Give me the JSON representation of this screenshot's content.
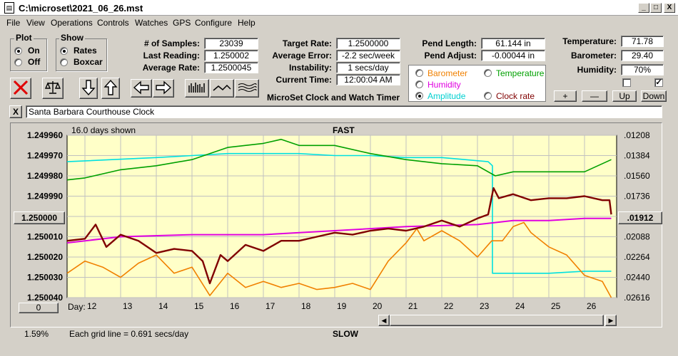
{
  "window": {
    "title": "C:\\microset\\2021_06_26.mst",
    "min": "_",
    "max": "□",
    "close": "X"
  },
  "menu": [
    "File",
    "View",
    "Operations",
    "Controls",
    "Watches",
    "GPS",
    "Configure",
    "Help"
  ],
  "plot_group": {
    "title": "Plot",
    "options": [
      "On",
      "Off"
    ],
    "selected": "On"
  },
  "show_group": {
    "title": "Show",
    "options": [
      "Rates",
      "Boxcar"
    ],
    "selected": "Rates"
  },
  "stats": {
    "samples_label": "# of Samples:",
    "samples": "23039",
    "last_label": "Last Reading:",
    "last": "1.250002",
    "avg_label": "Average Rate:",
    "avg": "1.2500045"
  },
  "targets": {
    "target_label": "Target Rate:",
    "target": "1.2500000",
    "err_label": "Average Error:",
    "err": "-2.2 sec/week",
    "inst_label": "Instability:",
    "inst": "1 secs/day",
    "time_label": "Current Time:",
    "time": "12:00:04 AM"
  },
  "pendulum": {
    "length_label": "Pend Length:",
    "length": "61.144 in",
    "adjust_label": "Pend Adjust:",
    "adjust": "-0.00044 in"
  },
  "environment": {
    "temp_label": "Temperature:",
    "temp": "71.78",
    "baro_label": "Barometer:",
    "baro": "29.40",
    "hum_label": "Humidity:",
    "hum": "70%",
    "check1": "",
    "check2": "✓"
  },
  "env_buttons": [
    "+",
    "—",
    "Up",
    "Down"
  ],
  "legend": {
    "items": [
      {
        "label": "Barometer",
        "color": "#f08000",
        "selected": false
      },
      {
        "label": "Temperature",
        "color": "#00a000",
        "selected": false
      },
      {
        "label": "Humidity",
        "color": "#e000e0",
        "selected": false
      },
      {
        "label": "Amplitude",
        "color": "#00d0d0",
        "selected": true
      },
      {
        "label": "Clock rate",
        "color": "#800000",
        "selected": false
      }
    ]
  },
  "app_caption": "MicroSet Clock and Watch Timer",
  "clock_name": "Santa Barbara Courthouse Clock",
  "close_x": "X",
  "chart_header": {
    "days_shown": "16.0 days shown",
    "top": "FAST",
    "bottom": "SLOW",
    "day_label": "Day:",
    "gridline_note": "Each grid line = 0.691 secs/day",
    "pct": "1.59%",
    "left_button": "0"
  },
  "colors": {
    "plot_bg": "#ffffc8",
    "grid": "#c0c0c0",
    "amplitude": "#00e0e0",
    "temperature": "#00a000",
    "humidity": "#e000e0",
    "barometer": "#f08000",
    "clock_rate": "#800000"
  },
  "chart_data": {
    "type": "line",
    "x_ticks": [
      12,
      13,
      14,
      15,
      16,
      17,
      18,
      19,
      20,
      21,
      22,
      23,
      24,
      25,
      26
    ],
    "xlim": [
      11.5,
      26.9
    ],
    "y_left_ticks": [
      "1.249960",
      "1.249970",
      "1.249980",
      "1.249990",
      "1.250000",
      "1.250010",
      "1.250020",
      "1.250030",
      "1.250040"
    ],
    "y_left_lim": [
      1.24996,
      1.25004
    ],
    "y_left_button": "1.250000",
    "y_right_ticks": [
      ".01208",
      ".01384",
      ".01560",
      ".01736",
      ".01912",
      ".02088",
      ".02264",
      ".02440",
      ".02616"
    ],
    "y_right_button": ".01912",
    "series": [
      {
        "name": "Amplitude",
        "color": "#00e0e0",
        "x": [
          11.5,
          14,
          15,
          16,
          17,
          18,
          19,
          20,
          21,
          22,
          23.3,
          23.42,
          23.42,
          24,
          25,
          26,
          26.75
        ],
        "y": [
          1.249973,
          1.249971,
          1.24997,
          1.249969,
          1.249969,
          1.249969,
          1.24997,
          1.24997,
          1.249971,
          1.249971,
          1.249973,
          1.249975,
          1.250028,
          1.250028,
          1.250028,
          1.250027,
          1.250027
        ]
      },
      {
        "name": "Temperature",
        "color": "#00a000",
        "x": [
          11.5,
          12,
          13,
          14,
          15,
          16,
          17,
          17.5,
          18,
          19,
          20,
          21,
          22,
          23,
          23.5,
          24,
          25,
          26,
          26.75
        ],
        "y": [
          1.249982,
          1.249981,
          1.249977,
          1.249975,
          1.249972,
          1.249966,
          1.249964,
          1.249962,
          1.249965,
          1.249965,
          1.249969,
          1.249972,
          1.249974,
          1.249975,
          1.24998,
          1.249978,
          1.249978,
          1.249978,
          1.249972
        ]
      },
      {
        "name": "Humidity",
        "color": "#e000e0",
        "x": [
          11.5,
          13,
          15,
          17,
          19,
          21,
          23,
          24,
          25,
          26,
          26.75
        ],
        "y": [
          1.250013,
          1.25001,
          1.250009,
          1.250009,
          1.250007,
          1.250005,
          1.250004,
          1.250002,
          1.250002,
          1.250001,
          1.250001
        ]
      },
      {
        "name": "Barometer",
        "color": "#f08000",
        "x": [
          11.5,
          12,
          12.5,
          13,
          13.5,
          14,
          14.5,
          15,
          15.5,
          16,
          16.5,
          17,
          17.5,
          18,
          18.5,
          19,
          19.5,
          20,
          20.5,
          21,
          21.3,
          21.5,
          22,
          22.5,
          23,
          23.4,
          23.7,
          24,
          24.3,
          24.5,
          25,
          25.5,
          26,
          26.5,
          26.75
        ],
        "y": [
          1.250028,
          1.250022,
          1.250025,
          1.25003,
          1.250023,
          1.250019,
          1.250028,
          1.250025,
          1.250039,
          1.250028,
          1.250035,
          1.250032,
          1.250035,
          1.250033,
          1.250036,
          1.250035,
          1.250033,
          1.250036,
          1.250022,
          1.250013,
          1.250006,
          1.250012,
          1.250007,
          1.250012,
          1.25002,
          1.250012,
          1.250012,
          1.250005,
          1.250003,
          1.250008,
          1.250015,
          1.250019,
          1.250029,
          1.250032,
          1.25004
        ]
      },
      {
        "name": "Clock rate",
        "color": "#800000",
        "x": [
          11.5,
          12,
          12.3,
          12.6,
          13,
          13.5,
          14,
          14.5,
          15,
          15.3,
          15.5,
          15.8,
          16,
          16.5,
          17,
          17.5,
          18,
          18.5,
          19,
          19.5,
          20,
          20.5,
          21,
          21.5,
          22,
          22.5,
          23,
          23.3,
          23.45,
          23.6,
          24,
          24.5,
          25,
          25.5,
          26,
          26.5,
          26.7,
          26.75
        ],
        "y": [
          1.250012,
          1.250011,
          1.250004,
          1.250015,
          1.250009,
          1.250012,
          1.250018,
          1.250016,
          1.250017,
          1.250022,
          1.250033,
          1.250019,
          1.250022,
          1.250014,
          1.250017,
          1.250012,
          1.250012,
          1.25001,
          1.250008,
          1.250009,
          1.250007,
          1.250006,
          1.250007,
          1.250005,
          1.250002,
          1.250005,
          1.250001,
          1.249999,
          1.249986,
          1.249991,
          1.249989,
          1.249992,
          1.249991,
          1.249991,
          1.24999,
          1.249992,
          1.249992,
          1.249999
        ]
      }
    ]
  }
}
